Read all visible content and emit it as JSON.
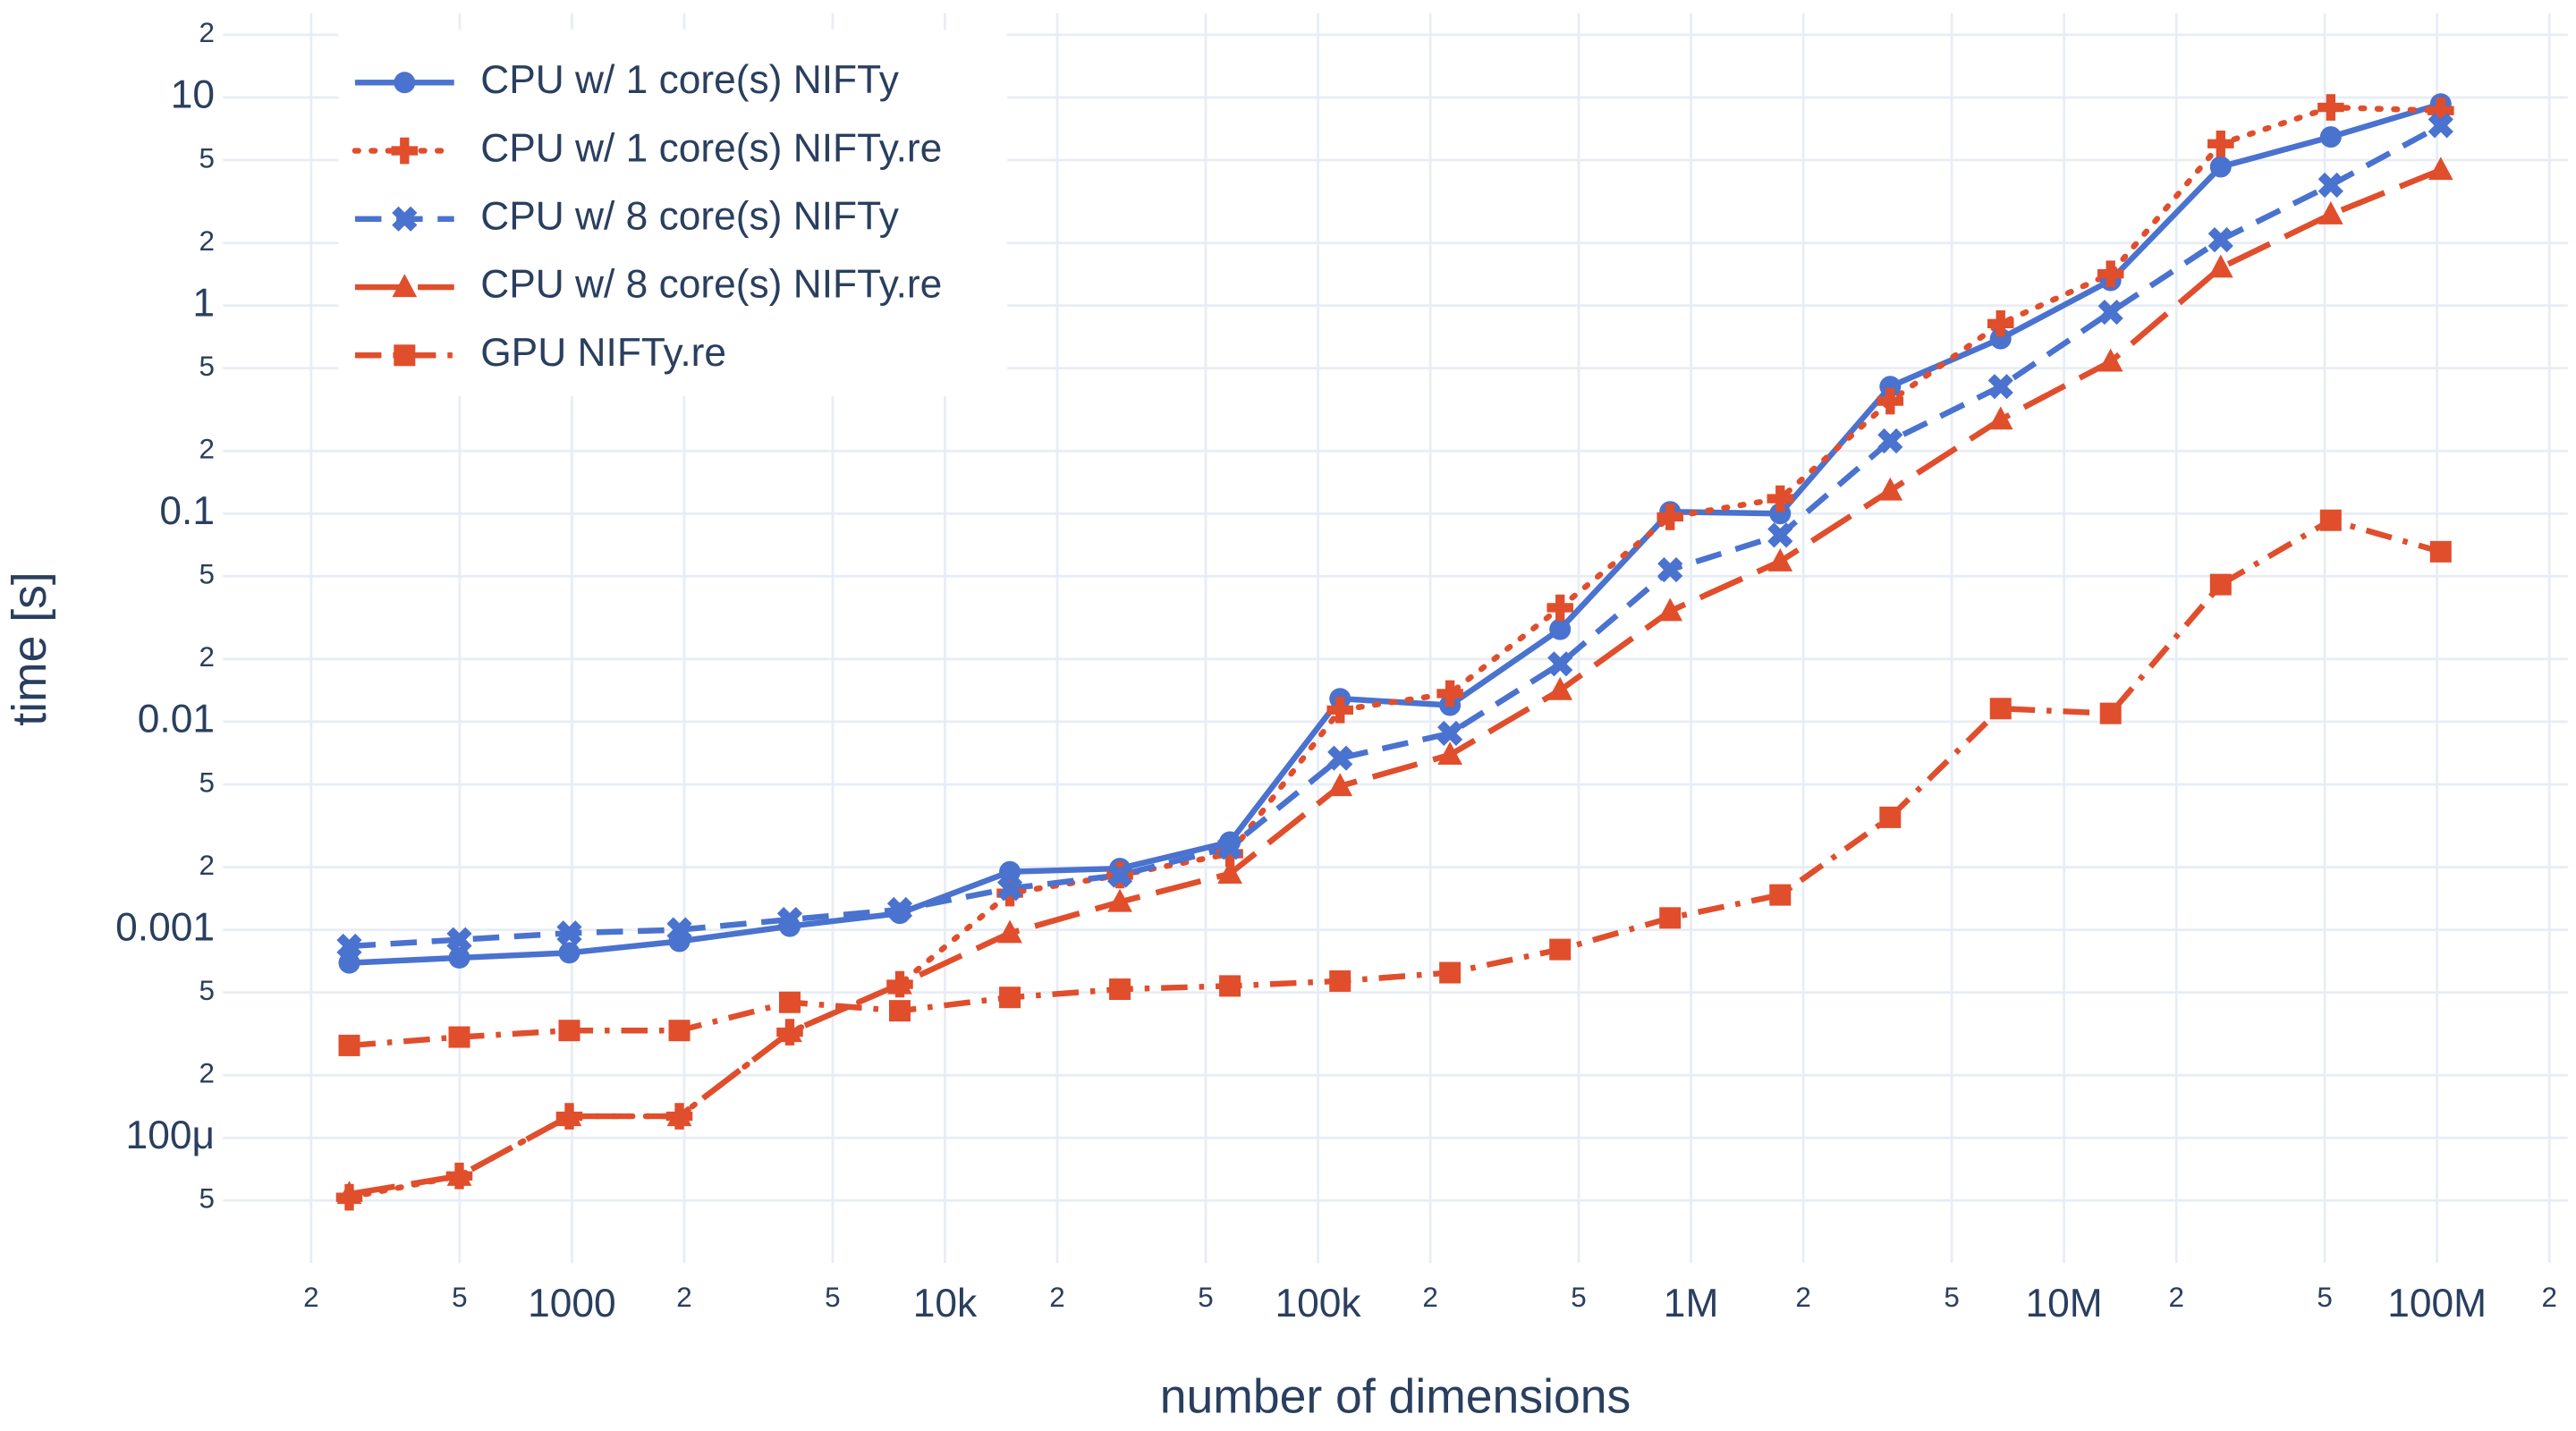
{
  "chart_data": {
    "type": "line",
    "x_label": "number of dimensions",
    "y_label": "time [s]",
    "log_x": true,
    "log_y": true,
    "grid": true,
    "legend": "top-left",
    "xlim": [
      116,
      224000000
    ],
    "ylim": [
      2.5e-05,
      25.4
    ],
    "xticks": [
      {
        "value": 200,
        "label": "2"
      },
      {
        "value": 500,
        "label": "5"
      },
      1000,
      {
        "value": 2000,
        "label": "2"
      },
      {
        "value": 5000,
        "label": "5"
      },
      {
        "value": 10000,
        "label": "10k"
      },
      {
        "value": 20000,
        "label": "2"
      },
      {
        "value": 50000,
        "label": "5"
      },
      {
        "value": 100000,
        "label": "100k"
      },
      {
        "value": 200000,
        "label": "2"
      },
      {
        "value": 500000,
        "label": "5"
      },
      {
        "value": 1000000,
        "label": "1M"
      },
      {
        "value": 2000000,
        "label": "2"
      },
      {
        "value": 5000000,
        "label": "5"
      },
      {
        "value": 10000000,
        "label": "10M"
      },
      {
        "value": 20000000,
        "label": "2"
      },
      {
        "value": 50000000,
        "label": "5"
      },
      {
        "value": 100000000,
        "label": "100M"
      },
      {
        "value": 200000000,
        "label": "2"
      }
    ],
    "yticks": [
      {
        "value": 5e-05,
        "label": "5"
      },
      {
        "value": 0.0001,
        "label": "100μ"
      },
      {
        "value": 0.0002,
        "label": "2"
      },
      {
        "value": 0.0005,
        "label": "5"
      },
      0.001,
      {
        "value": 0.002,
        "label": "2"
      },
      {
        "value": 0.005,
        "label": "5"
      },
      0.01,
      {
        "value": 0.02,
        "label": "2"
      },
      {
        "value": 0.05,
        "label": "5"
      },
      0.1,
      {
        "value": 0.2,
        "label": "2"
      },
      {
        "value": 0.5,
        "label": "5"
      },
      1,
      2,
      5,
      10,
      {
        "value": 20,
        "label": "2"
      }
    ],
    "x": [
      253,
      499,
      984,
      1941,
      3837,
      7568,
      14930,
      29440,
      58070,
      114600,
      225900,
      445700,
      879000,
      1734000,
      3420000,
      6761000,
      13330000,
      26300000,
      51880000,
      102300000
    ],
    "series": [
      {
        "name": "CPU w/ 1 core(s) NIFTy",
        "color": "#4a72cf",
        "dash": "solid",
        "symbol": "circle",
        "values": [
          0.000693,
          0.000733,
          0.000775,
          0.00088,
          0.00104,
          0.0012,
          0.0019,
          0.00197,
          0.00264,
          0.0129,
          0.012,
          0.0278,
          0.102,
          0.1,
          0.408,
          0.693,
          1.32,
          4.64,
          6.46,
          9.3
        ]
      },
      {
        "name": "CPU w/ 1 core(s) NIFTy.re",
        "color": "#e04e2c",
        "dash": "dot",
        "symbol": "cross",
        "values": [
          5.18e-05,
          6.56e-05,
          0.000127,
          0.000127,
          0.000322,
          0.000547,
          0.0015,
          0.00183,
          0.00232,
          0.01138,
          0.01366,
          0.0353,
          0.0964,
          0.118,
          0.347,
          0.819,
          1.42,
          5.99,
          8.96,
          8.64
        ]
      },
      {
        "name": "CPU w/ 8 core(s) NIFTy",
        "color": "#4a72cf",
        "dash": "dash",
        "symbol": "x",
        "values": [
          0.000834,
          0.000896,
          0.000964,
          0.001,
          0.00112,
          0.00125,
          0.00158,
          0.00183,
          0.00249,
          0.00668,
          0.00879,
          0.01895,
          0.0537,
          0.0788,
          0.2235,
          0.408,
          0.929,
          2.07,
          3.79,
          7.33
        ]
      },
      {
        "name": "CPU w/ 8 core(s) NIFTy.re",
        "color": "#e04e2c",
        "dash": "longdash",
        "symbol": "triangle",
        "values": [
          5.37e-05,
          6.56e-05,
          0.000127,
          0.000127,
          0.000322,
          0.000547,
          0.000964,
          0.00136,
          0.00186,
          0.0049,
          0.00693,
          0.01417,
          0.034,
          0.0589,
          0.129,
          0.283,
          0.537,
          1.52,
          2.74,
          4.48
        ]
      },
      {
        "name": "GPU NIFTy.re",
        "color": "#e04e2c",
        "dash": "dashdot",
        "symbol": "square",
        "values": [
          0.000278,
          0.000305,
          0.000328,
          0.000328,
          0.000448,
          0.000408,
          0.000473,
          0.000518,
          0.000537,
          0.000567,
          0.000622,
          0.000804,
          0.00114,
          0.00147,
          0.00347,
          0.01156,
          0.01096,
          0.0456,
          0.0929,
          0.0656
        ]
      }
    ]
  }
}
